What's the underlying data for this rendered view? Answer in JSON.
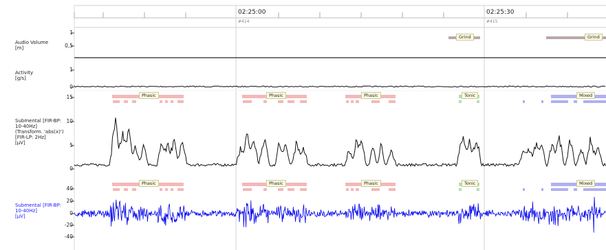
{
  "timeline": {
    "times": [
      "02:25:00",
      "02:25:30"
    ],
    "epochs": [
      "#414",
      "#415"
    ]
  },
  "channels": [
    {
      "label": "Audio Volume\n[m]",
      "ticks": [
        "1",
        "0,5"
      ]
    },
    {
      "label": "Activity\n[g/s]",
      "ticks": [
        "1",
        "0"
      ]
    },
    {
      "label": "Submental [FIR-BP:\n10-40Hz]\n(Transform. 'abs(x)')\n[FIR-LP: 2Hz]\n[µV]",
      "ticks": [
        "15",
        "10",
        "5",
        "0"
      ]
    },
    {
      "label": "Submental [FIR-BP:\n10-40Hz]\n[µV]",
      "ticks": [
        "40",
        "20",
        "0",
        "-20",
        "-40"
      ]
    }
  ],
  "events": {
    "audio": [
      "Grind",
      "Grind"
    ],
    "emg": [
      "Phasic",
      "Phasic",
      "Phasic",
      "Tonic",
      "Mixed"
    ],
    "raw": [
      "Phasic",
      "Phasic",
      "Phasic",
      "Tonic",
      "Mixed"
    ]
  },
  "colors": {
    "phasic": "#f4b8b8",
    "tonic": "#b8dcb0",
    "mixed": "#b0b0f0",
    "grind": "#b8a8a8",
    "raw_signal": "#0000ee",
    "env_signal": "#111111"
  }
}
